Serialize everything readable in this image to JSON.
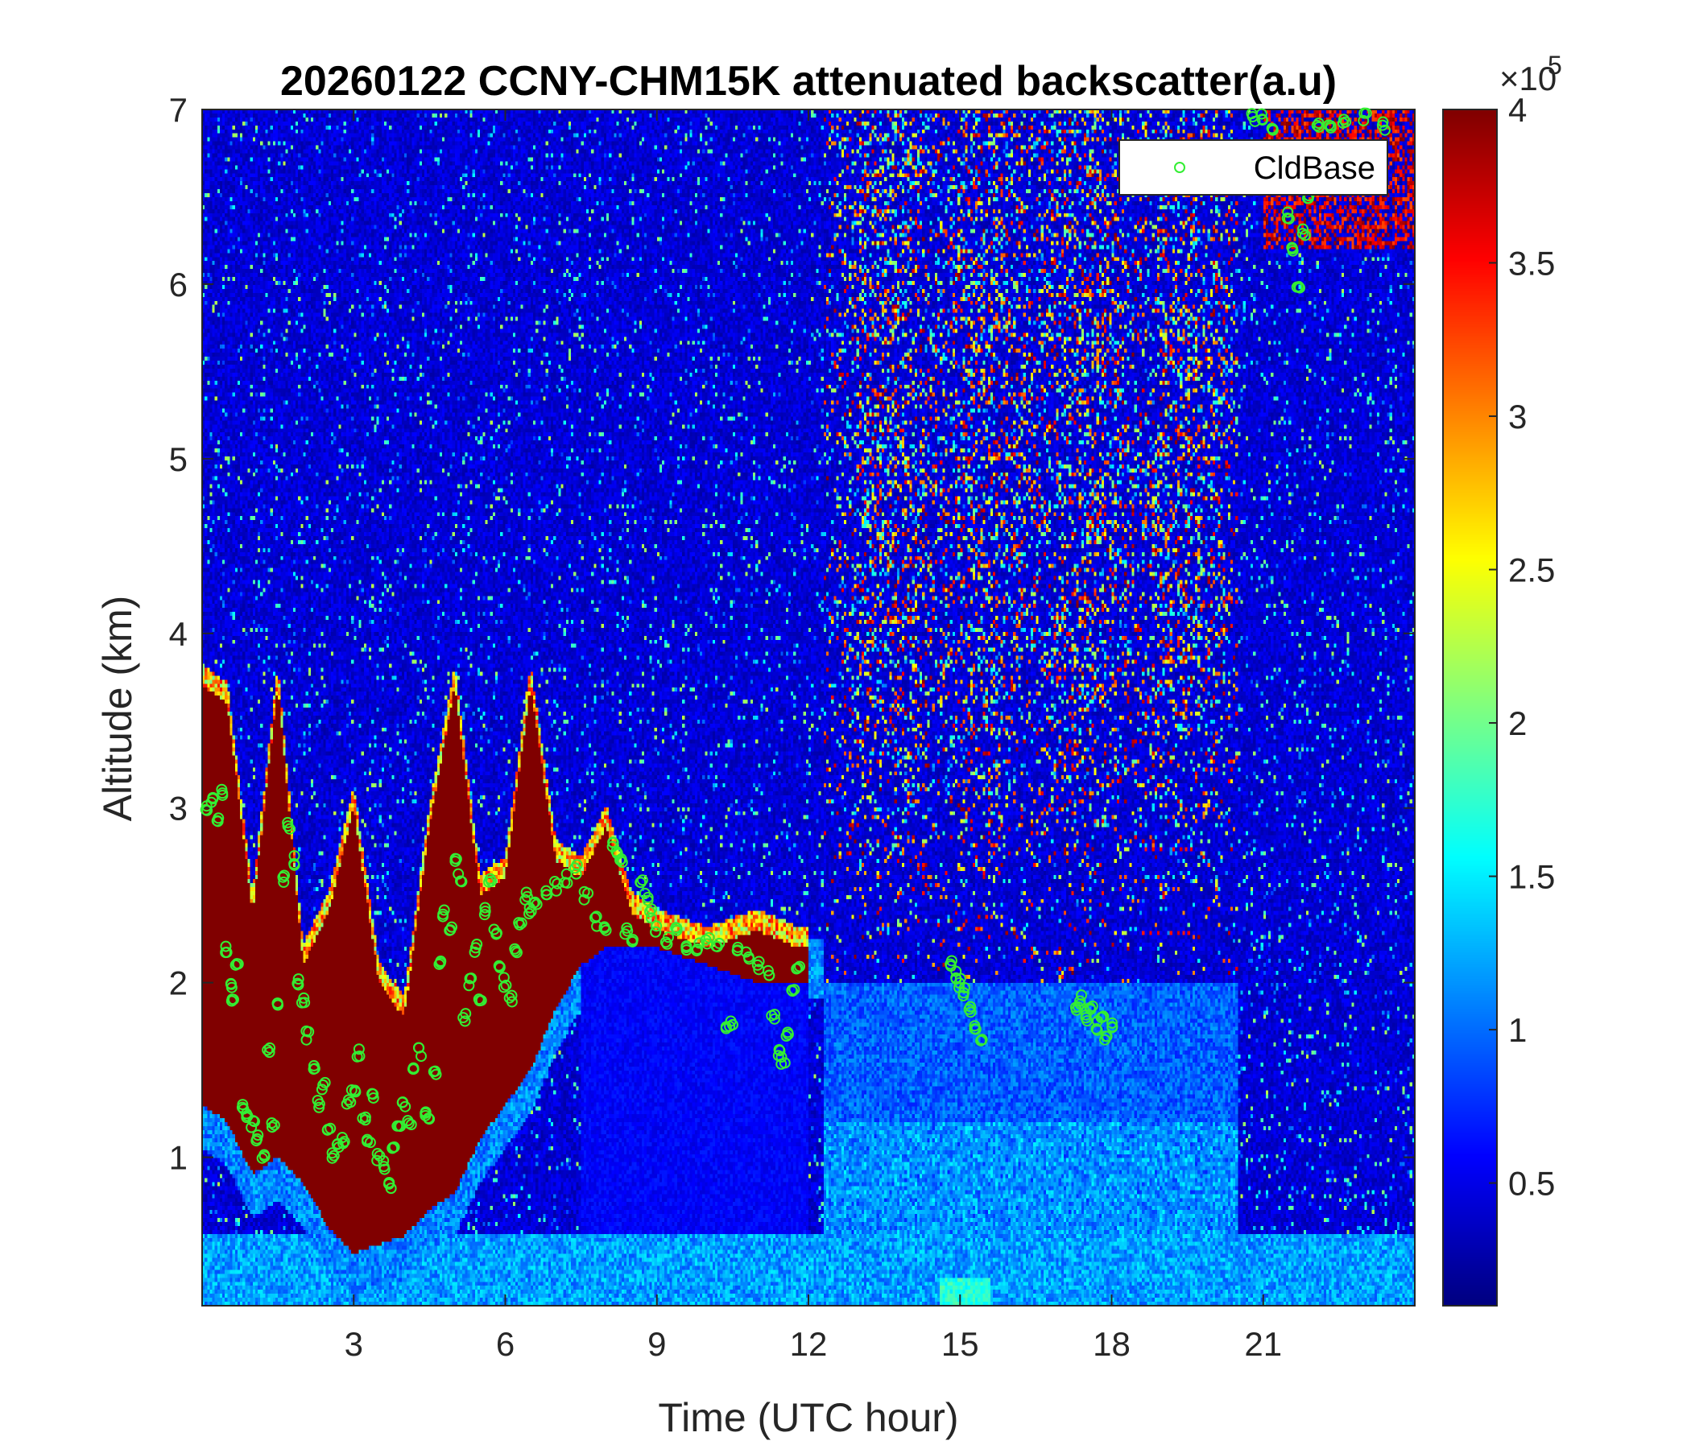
{
  "chart_data": {
    "type": "heatmap",
    "title": "20260122 CCNY-CHM15K attenuated backscatter(a.u)",
    "xlabel": "Time (UTC hour)",
    "ylabel": "Altitude (km)",
    "xlim": [
      0,
      24
    ],
    "ylim": [
      0.15,
      7
    ],
    "xticks": [
      3,
      6,
      9,
      12,
      15,
      18,
      21
    ],
    "yticks": [
      1,
      2,
      3,
      4,
      5,
      6,
      7
    ],
    "colormap": "jet",
    "colorbar": {
      "clim": [
        0.1,
        4.0
      ],
      "ticks": [
        0.5,
        1,
        1.5,
        2,
        2.5,
        3,
        3.5,
        4
      ],
      "exponent_label": "×10",
      "exponent_power": "5"
    },
    "grid": false,
    "legend": {
      "position": "top-right",
      "entries": [
        "CldBase"
      ],
      "marker_color": "#33ee33",
      "marker": "circle"
    },
    "cloud_layer_top_km": [
      [
        0.0,
        3.7
      ],
      [
        0.5,
        3.6
      ],
      [
        1.0,
        2.4
      ],
      [
        1.5,
        3.7
      ],
      [
        2.0,
        2.1
      ],
      [
        2.5,
        2.4
      ],
      [
        3.0,
        3.0
      ],
      [
        3.5,
        2.0
      ],
      [
        4.0,
        1.8
      ],
      [
        4.5,
        2.9
      ],
      [
        5.0,
        3.7
      ],
      [
        5.5,
        2.5
      ],
      [
        6.0,
        2.6
      ],
      [
        6.5,
        3.7
      ],
      [
        7.0,
        2.7
      ],
      [
        7.5,
        2.6
      ],
      [
        8.0,
        2.9
      ],
      [
        8.5,
        2.4
      ],
      [
        9.0,
        2.3
      ],
      [
        10.0,
        2.2
      ],
      [
        11.0,
        2.3
      ],
      [
        11.8,
        2.2
      ]
    ],
    "cloud_layer_bottom_km": [
      [
        0.0,
        1.3
      ],
      [
        0.5,
        1.2
      ],
      [
        1.0,
        0.9
      ],
      [
        1.5,
        1.0
      ],
      [
        2.0,
        0.85
      ],
      [
        2.5,
        0.6
      ],
      [
        3.0,
        0.45
      ],
      [
        3.5,
        0.5
      ],
      [
        4.0,
        0.55
      ],
      [
        4.5,
        0.7
      ],
      [
        5.0,
        0.8
      ],
      [
        5.5,
        1.1
      ],
      [
        6.0,
        1.3
      ],
      [
        6.5,
        1.5
      ],
      [
        7.0,
        1.85
      ],
      [
        7.5,
        2.1
      ],
      [
        8.0,
        2.2
      ],
      [
        9.0,
        2.2
      ],
      [
        10.0,
        2.1
      ],
      [
        11.0,
        2.0
      ],
      [
        11.8,
        2.0
      ]
    ],
    "high_cloud_km": {
      "x_range": [
        21,
        24
      ],
      "y_range": [
        6.2,
        7.0
      ]
    },
    "noise_plume_hours": [
      [
        12.3,
        14.6
      ],
      [
        14.6,
        16.6
      ],
      [
        16.6,
        18.5
      ],
      [
        18.5,
        20.5
      ]
    ],
    "cldbase_series": [
      {
        "name": "CldBase",
        "points": [
          [
            0.1,
            3.0
          ],
          [
            0.2,
            3.05
          ],
          [
            0.3,
            2.95
          ],
          [
            0.4,
            3.1
          ],
          [
            0.5,
            2.2
          ],
          [
            0.55,
            2.0
          ],
          [
            0.6,
            1.9
          ],
          [
            0.7,
            2.1
          ],
          [
            0.8,
            1.3
          ],
          [
            0.9,
            1.25
          ],
          [
            1.0,
            1.2
          ],
          [
            1.1,
            1.1
          ],
          [
            1.2,
            1.0
          ],
          [
            1.3,
            1.6
          ],
          [
            1.4,
            1.2
          ],
          [
            1.5,
            1.9
          ],
          [
            1.6,
            2.6
          ],
          [
            1.7,
            2.9
          ],
          [
            1.8,
            2.7
          ],
          [
            1.9,
            2.0
          ],
          [
            2.0,
            1.9
          ],
          [
            2.1,
            1.7
          ],
          [
            2.2,
            1.5
          ],
          [
            2.3,
            1.3
          ],
          [
            2.4,
            1.4
          ],
          [
            2.5,
            1.15
          ],
          [
            2.6,
            1.0
          ],
          [
            2.7,
            1.05
          ],
          [
            2.8,
            1.1
          ],
          [
            2.9,
            1.3
          ],
          [
            3.0,
            1.4
          ],
          [
            3.1,
            1.6
          ],
          [
            3.2,
            1.2
          ],
          [
            3.3,
            1.1
          ],
          [
            3.4,
            1.35
          ],
          [
            3.5,
            1.0
          ],
          [
            3.6,
            0.95
          ],
          [
            3.7,
            0.85
          ],
          [
            3.8,
            1.05
          ],
          [
            3.9,
            1.2
          ],
          [
            4.0,
            1.3
          ],
          [
            4.1,
            1.2
          ],
          [
            4.2,
            1.5
          ],
          [
            4.3,
            1.6
          ],
          [
            4.4,
            1.25
          ],
          [
            4.5,
            1.2
          ],
          [
            4.6,
            1.5
          ],
          [
            4.7,
            2.1
          ],
          [
            4.8,
            2.4
          ],
          [
            4.9,
            2.3
          ],
          [
            5.0,
            2.7
          ],
          [
            5.1,
            2.6
          ],
          [
            5.2,
            1.8
          ],
          [
            5.3,
            2.0
          ],
          [
            5.4,
            2.2
          ],
          [
            5.5,
            1.9
          ],
          [
            5.6,
            2.4
          ],
          [
            5.7,
            2.6
          ],
          [
            5.8,
            2.3
          ],
          [
            5.9,
            2.1
          ],
          [
            6.0,
            2.0
          ],
          [
            6.1,
            1.9
          ],
          [
            6.2,
            2.2
          ],
          [
            6.3,
            2.35
          ],
          [
            6.4,
            2.5
          ],
          [
            6.5,
            2.4
          ],
          [
            6.6,
            2.45
          ],
          [
            6.8,
            2.5
          ],
          [
            7.0,
            2.55
          ],
          [
            7.2,
            2.6
          ],
          [
            7.4,
            2.65
          ],
          [
            7.6,
            2.5
          ],
          [
            7.8,
            2.35
          ],
          [
            8.0,
            2.3
          ],
          [
            8.1,
            2.8
          ],
          [
            8.2,
            2.75
          ],
          [
            8.3,
            2.7
          ],
          [
            8.4,
            2.3
          ],
          [
            8.5,
            2.25
          ],
          [
            8.7,
            2.6
          ],
          [
            8.8,
            2.5
          ],
          [
            8.9,
            2.4
          ],
          [
            9.0,
            2.3
          ],
          [
            9.2,
            2.25
          ],
          [
            9.4,
            2.3
          ],
          [
            9.6,
            2.2
          ],
          [
            9.8,
            2.2
          ],
          [
            10.0,
            2.25
          ],
          [
            10.2,
            2.2
          ],
          [
            10.4,
            1.72
          ],
          [
            10.5,
            1.78
          ],
          [
            10.6,
            2.2
          ],
          [
            10.8,
            2.15
          ],
          [
            11.0,
            2.1
          ],
          [
            11.2,
            2.05
          ],
          [
            11.3,
            1.8
          ],
          [
            11.4,
            1.6
          ],
          [
            11.5,
            1.55
          ],
          [
            11.6,
            1.7
          ],
          [
            11.7,
            1.95
          ],
          [
            11.8,
            2.1
          ],
          [
            14.8,
            2.1
          ],
          [
            14.9,
            2.05
          ],
          [
            15.0,
            2.0
          ],
          [
            15.1,
            1.95
          ],
          [
            15.2,
            1.85
          ],
          [
            15.3,
            1.75
          ],
          [
            15.4,
            1.65
          ],
          [
            17.3,
            1.85
          ],
          [
            17.4,
            1.9
          ],
          [
            17.5,
            1.8
          ],
          [
            17.6,
            1.85
          ],
          [
            17.7,
            1.75
          ],
          [
            17.8,
            1.8
          ],
          [
            17.9,
            1.7
          ],
          [
            18.0,
            1.75
          ],
          [
            20.8,
            6.95
          ],
          [
            21.0,
            6.95
          ],
          [
            21.2,
            6.9
          ],
          [
            21.4,
            6.6
          ],
          [
            21.5,
            6.4
          ],
          [
            21.6,
            6.2
          ],
          [
            21.7,
            6.0
          ],
          [
            21.8,
            6.3
          ],
          [
            21.9,
            6.5
          ],
          [
            22.0,
            6.7
          ],
          [
            22.1,
            6.9
          ],
          [
            22.3,
            6.9
          ],
          [
            22.6,
            6.95
          ],
          [
            23.0,
            6.95
          ],
          [
            23.4,
            6.9
          ]
        ]
      }
    ]
  }
}
